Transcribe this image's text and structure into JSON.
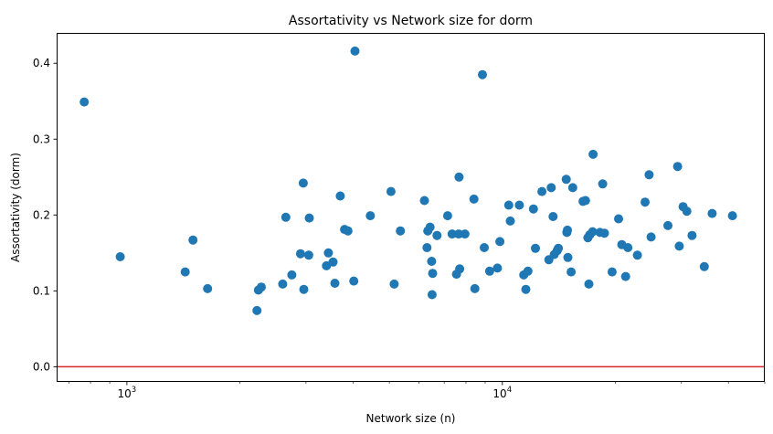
{
  "chart_data": {
    "type": "scatter",
    "title": "Assortativity vs Network size for dorm",
    "xlabel": "Network size (n)",
    "ylabel": "Assortativity (dorm)",
    "xscale": "log",
    "xlim": [
      650,
      50000
    ],
    "ylim": [
      -0.02,
      0.44
    ],
    "grid": false,
    "marker_color": "#1f77b4",
    "reference_line": {
      "y": 0.0,
      "color": "#d62728"
    },
    "x_major_ticks": [
      {
        "value": 1000,
        "label": "10",
        "exp": "3"
      },
      {
        "value": 10000,
        "label": "10",
        "exp": "4"
      }
    ],
    "y_ticks": [
      {
        "value": 0.0,
        "label": "0.0"
      },
      {
        "value": 0.1,
        "label": "0.1"
      },
      {
        "value": 0.2,
        "label": "0.2"
      },
      {
        "value": 0.3,
        "label": "0.3"
      },
      {
        "value": 0.4,
        "label": "0.4"
      }
    ],
    "points": [
      [
        770,
        0.349
      ],
      [
        960,
        0.145
      ],
      [
        1430,
        0.125
      ],
      [
        1500,
        0.167
      ],
      [
        1640,
        0.103
      ],
      [
        2220,
        0.074
      ],
      [
        2240,
        0.101
      ],
      [
        2280,
        0.105
      ],
      [
        2600,
        0.109
      ],
      [
        2650,
        0.197
      ],
      [
        2750,
        0.121
      ],
      [
        2900,
        0.149
      ],
      [
        2950,
        0.242
      ],
      [
        2960,
        0.102
      ],
      [
        3050,
        0.147
      ],
      [
        3060,
        0.196
      ],
      [
        3400,
        0.133
      ],
      [
        3440,
        0.15
      ],
      [
        3540,
        0.138
      ],
      [
        3580,
        0.11
      ],
      [
        3700,
        0.225
      ],
      [
        3800,
        0.181
      ],
      [
        3880,
        0.179
      ],
      [
        4020,
        0.113
      ],
      [
        4050,
        0.416
      ],
      [
        4450,
        0.199
      ],
      [
        5050,
        0.231
      ],
      [
        5150,
        0.109
      ],
      [
        5350,
        0.179
      ],
      [
        6200,
        0.219
      ],
      [
        6300,
        0.157
      ],
      [
        6330,
        0.179
      ],
      [
        6420,
        0.184
      ],
      [
        6480,
        0.139
      ],
      [
        6500,
        0.095
      ],
      [
        6520,
        0.123
      ],
      [
        6700,
        0.173
      ],
      [
        7150,
        0.199
      ],
      [
        7350,
        0.175
      ],
      [
        7550,
        0.122
      ],
      [
        7650,
        0.175
      ],
      [
        7670,
        0.25
      ],
      [
        7700,
        0.129
      ],
      [
        7950,
        0.175
      ],
      [
        8400,
        0.221
      ],
      [
        8450,
        0.103
      ],
      [
        8850,
        0.385
      ],
      [
        8950,
        0.157
      ],
      [
        9250,
        0.126
      ],
      [
        9700,
        0.13
      ],
      [
        9850,
        0.165
      ],
      [
        10400,
        0.213
      ],
      [
        10500,
        0.192
      ],
      [
        11100,
        0.213
      ],
      [
        11400,
        0.121
      ],
      [
        11550,
        0.102
      ],
      [
        11700,
        0.126
      ],
      [
        12100,
        0.208
      ],
      [
        12250,
        0.156
      ],
      [
        12750,
        0.231
      ],
      [
        13300,
        0.141
      ],
      [
        13500,
        0.236
      ],
      [
        13650,
        0.198
      ],
      [
        13750,
        0.148
      ],
      [
        14000,
        0.153
      ],
      [
        14100,
        0.156
      ],
      [
        14800,
        0.247
      ],
      [
        14850,
        0.177
      ],
      [
        14900,
        0.18
      ],
      [
        14950,
        0.144
      ],
      [
        15250,
        0.125
      ],
      [
        15400,
        0.236
      ],
      [
        16400,
        0.218
      ],
      [
        16650,
        0.219
      ],
      [
        16900,
        0.17
      ],
      [
        17000,
        0.109
      ],
      [
        17100,
        0.174
      ],
      [
        17400,
        0.178
      ],
      [
        17450,
        0.28
      ],
      [
        18200,
        0.177
      ],
      [
        18500,
        0.241
      ],
      [
        18700,
        0.176
      ],
      [
        19600,
        0.125
      ],
      [
        20400,
        0.195
      ],
      [
        20800,
        0.161
      ],
      [
        21300,
        0.119
      ],
      [
        21600,
        0.157
      ],
      [
        22900,
        0.147
      ],
      [
        24000,
        0.217
      ],
      [
        24600,
        0.253
      ],
      [
        24900,
        0.171
      ],
      [
        27600,
        0.186
      ],
      [
        29300,
        0.264
      ],
      [
        29600,
        0.159
      ],
      [
        30300,
        0.211
      ],
      [
        31000,
        0.205
      ],
      [
        32000,
        0.173
      ],
      [
        34500,
        0.132
      ],
      [
        36200,
        0.202
      ],
      [
        41000,
        0.199
      ]
    ]
  }
}
